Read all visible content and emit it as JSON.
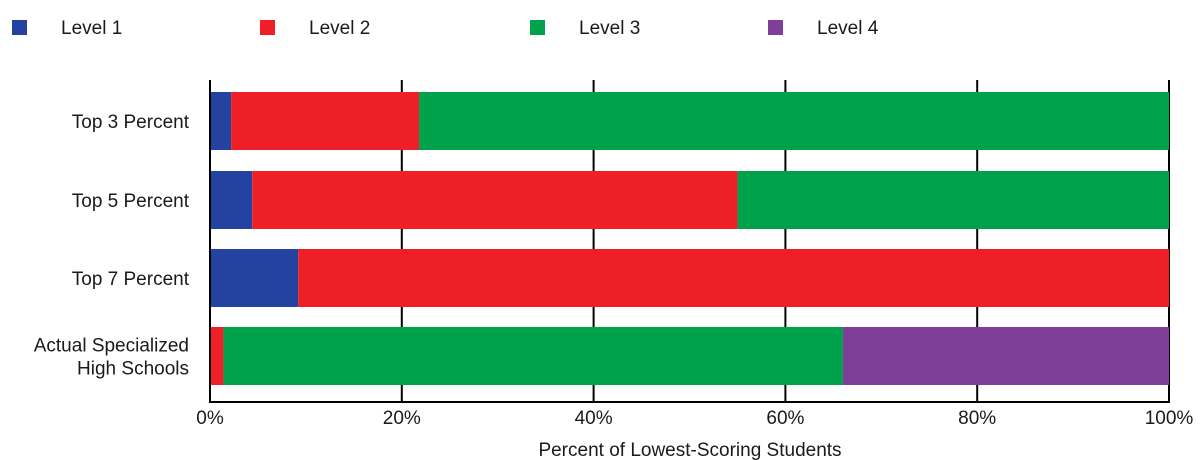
{
  "chart_data": {
    "type": "bar",
    "orientation": "horizontal",
    "stacked": true,
    "categories": [
      [
        "Top 3 Percent"
      ],
      [
        "Top 5 Percent"
      ],
      [
        "Top 7 Percent"
      ],
      [
        "Actual Specialized",
        "High Schools"
      ]
    ],
    "series": [
      {
        "name": "Level 1",
        "color": "#2443a0",
        "values": [
          2.2,
          4.4,
          9.2,
          0
        ]
      },
      {
        "name": "Level 2",
        "color": "#ee1f26",
        "values": [
          19.6,
          50.6,
          90.8,
          1.4
        ]
      },
      {
        "name": "Level 3",
        "color": "#00a14b",
        "values": [
          78.2,
          45.0,
          0,
          64.6
        ]
      },
      {
        "name": "Level 4",
        "color": "#7f3f98",
        "values": [
          0,
          0,
          0,
          34.0
        ]
      }
    ],
    "xlim": [
      0,
      100
    ],
    "xticks": [
      0,
      20,
      40,
      60,
      80,
      100
    ],
    "xtick_labels": [
      "0%",
      "20%",
      "40%",
      "60%",
      "80%",
      "100%"
    ],
    "xlabel": "Percent of Lowest-Scoring Students",
    "ylabel": "",
    "legend_position": "top",
    "grid": "vertical lines at ticks"
  }
}
